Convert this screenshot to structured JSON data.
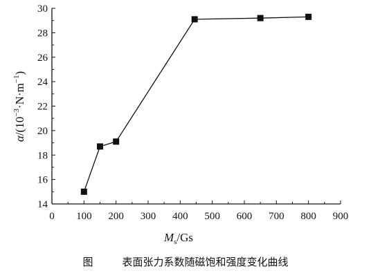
{
  "chart_data": {
    "type": "line",
    "x": [
      100,
      150,
      200,
      445,
      650,
      800
    ],
    "series": [
      {
        "values": [
          15.0,
          18.7,
          19.1,
          29.1,
          29.2,
          29.3
        ]
      }
    ],
    "xlim": [
      0,
      900
    ],
    "ylim": [
      14,
      30
    ],
    "xticks": [
      "0",
      "100",
      "200",
      "300",
      "400",
      "500",
      "600",
      "700",
      "800",
      "900"
    ],
    "yticks": [
      "14",
      "16",
      "18",
      "20",
      "22",
      "24",
      "26",
      "28",
      "30"
    ],
    "xlabel": {
      "main": "M",
      "sub": "s",
      "unit": "/Gs"
    },
    "ylabel": {
      "sym": "α",
      "text": "/(10",
      "exp1": "−3",
      "mid": "·N·m",
      "exp2": "−1",
      "end": ")"
    },
    "grid": false,
    "marker": "square",
    "line_color": "#111111"
  },
  "caption": {
    "label": "图",
    "text": "表面张力系数随磁饱和强度变化曲线"
  }
}
